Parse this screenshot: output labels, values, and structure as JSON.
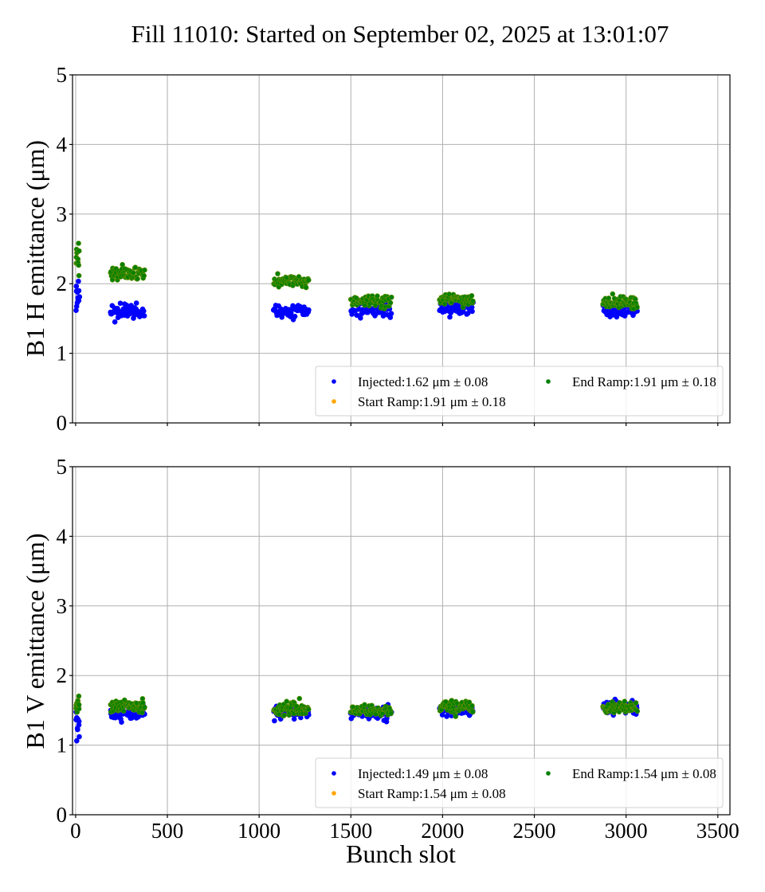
{
  "chart_data": [
    {
      "type": "scatter",
      "id": "b1h",
      "title": "Fill 11010: Started on September 02, 2025 at 13:01:07",
      "xlabel": "",
      "ylabel": "B1 H emittance (μm)",
      "xlim": [
        -17,
        3566
      ],
      "ylim": [
        0,
        5
      ],
      "xticks": [
        0,
        500,
        1000,
        1500,
        2000,
        2500,
        3000,
        3500
      ],
      "xtick_labels_visible": false,
      "yticks": [
        0,
        1,
        2,
        3,
        4,
        5
      ],
      "grid": true,
      "legend": {
        "placement": "lower-right",
        "ncol": 2,
        "entries": [
          {
            "series": "Injected",
            "label": "Injected:1.62 μm ± 0.08"
          },
          {
            "series": "Start Ramp",
            "label": "Start Ramp:1.91 μm ± 0.18"
          },
          {
            "series": "End Ramp",
            "label": "End Ramp:1.91 μm ± 0.18"
          }
        ]
      },
      "series": [
        {
          "name": "Injected",
          "color": "#0000ff",
          "mean": 1.62,
          "std": 0.08,
          "trains": [
            {
              "slots": [
                2,
                20
              ],
              "count": 12,
              "mean": 1.85,
              "spread": 0.22
            },
            {
              "slots": [
                190,
                375
              ],
              "count": 60,
              "mean": 1.6,
              "spread": 0.07
            },
            {
              "slots": [
                1080,
                1270
              ],
              "count": 60,
              "mean": 1.61,
              "spread": 0.06
            },
            {
              "slots": [
                1500,
                1720
              ],
              "count": 60,
              "mean": 1.64,
              "spread": 0.07
            },
            {
              "slots": [
                1985,
                2165
              ],
              "count": 60,
              "mean": 1.66,
              "spread": 0.06
            },
            {
              "slots": [
                2875,
                3060
              ],
              "count": 60,
              "mean": 1.62,
              "spread": 0.06
            }
          ]
        },
        {
          "name": "Start Ramp",
          "color": "#ffa500",
          "mean": 1.91,
          "std": 0.18,
          "trains": []
        },
        {
          "name": "End Ramp",
          "color": "#008000",
          "mean": 1.91,
          "std": 0.18,
          "trains": [
            {
              "slots": [
                2,
                20
              ],
              "count": 12,
              "mean": 2.35,
              "spread": 0.18
            },
            {
              "slots": [
                190,
                375
              ],
              "count": 60,
              "mean": 2.14,
              "spread": 0.07
            },
            {
              "slots": [
                1080,
                1270
              ],
              "count": 60,
              "mean": 2.03,
              "spread": 0.06
            },
            {
              "slots": [
                1500,
                1720
              ],
              "count": 60,
              "mean": 1.76,
              "spread": 0.06
            },
            {
              "slots": [
                1985,
                2165
              ],
              "count": 60,
              "mean": 1.77,
              "spread": 0.06
            },
            {
              "slots": [
                2875,
                3060
              ],
              "count": 60,
              "mean": 1.73,
              "spread": 0.06
            }
          ]
        }
      ]
    },
    {
      "type": "scatter",
      "id": "b1v",
      "title": "",
      "xlabel": "Bunch slot",
      "ylabel": "B1 V emittance (μm)",
      "xlim": [
        -17,
        3566
      ],
      "ylim": [
        0,
        5
      ],
      "xticks": [
        0,
        500,
        1000,
        1500,
        2000,
        2500,
        3000,
        3500
      ],
      "xtick_labels": [
        "0",
        "500",
        "1000",
        "1500",
        "2000",
        "2500",
        "3000",
        "3500"
      ],
      "xtick_labels_visible": true,
      "yticks": [
        0,
        1,
        2,
        3,
        4,
        5
      ],
      "grid": true,
      "legend": {
        "placement": "lower-right",
        "ncol": 2,
        "entries": [
          {
            "series": "Injected",
            "label": "Injected:1.49 μm ± 0.08"
          },
          {
            "series": "Start Ramp",
            "label": "Start Ramp:1.54 μm ± 0.08"
          },
          {
            "series": "End Ramp",
            "label": "End Ramp:1.54 μm ± 0.08"
          }
        ]
      },
      "series": [
        {
          "name": "Injected",
          "color": "#0000ff",
          "mean": 1.49,
          "std": 0.08,
          "trains": [
            {
              "slots": [
                2,
                20
              ],
              "count": 12,
              "mean": 1.32,
              "spread": 0.14
            },
            {
              "slots": [
                190,
                375
              ],
              "count": 60,
              "mean": 1.45,
              "spread": 0.06
            },
            {
              "slots": [
                1080,
                1270
              ],
              "count": 60,
              "mean": 1.47,
              "spread": 0.06
            },
            {
              "slots": [
                1500,
                1720
              ],
              "count": 60,
              "mean": 1.47,
              "spread": 0.06
            },
            {
              "slots": [
                1985,
                2165
              ],
              "count": 60,
              "mean": 1.51,
              "spread": 0.06
            },
            {
              "slots": [
                2875,
                3060
              ],
              "count": 60,
              "mean": 1.55,
              "spread": 0.07
            }
          ]
        },
        {
          "name": "Start Ramp",
          "color": "#ffa500",
          "mean": 1.54,
          "std": 0.08,
          "trains": []
        },
        {
          "name": "End Ramp",
          "color": "#008000",
          "mean": 1.54,
          "std": 0.08,
          "trains": [
            {
              "slots": [
                2,
                20
              ],
              "count": 12,
              "mean": 1.55,
              "spread": 0.12
            },
            {
              "slots": [
                190,
                375
              ],
              "count": 60,
              "mean": 1.56,
              "spread": 0.06
            },
            {
              "slots": [
                1080,
                1270
              ],
              "count": 60,
              "mean": 1.52,
              "spread": 0.06
            },
            {
              "slots": [
                1500,
                1720
              ],
              "count": 60,
              "mean": 1.5,
              "spread": 0.05
            },
            {
              "slots": [
                1985,
                2165
              ],
              "count": 60,
              "mean": 1.55,
              "spread": 0.06
            },
            {
              "slots": [
                2875,
                3060
              ],
              "count": 60,
              "mean": 1.54,
              "spread": 0.05
            }
          ]
        }
      ]
    }
  ]
}
